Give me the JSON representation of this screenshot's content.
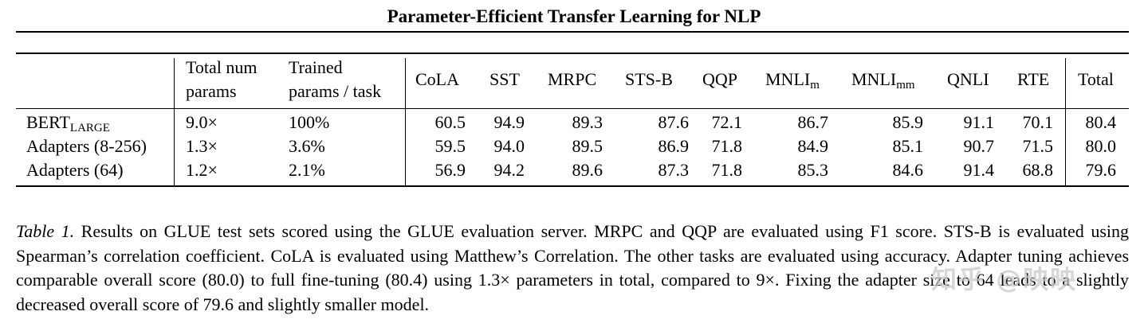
{
  "header": {
    "title": "Parameter-Efficient Transfer Learning for NLP"
  },
  "table": {
    "columns": {
      "total_num_params": [
        "Total num",
        "params"
      ],
      "trained_params": [
        "Trained",
        "params / task"
      ],
      "tasks": [
        "CoLA",
        "SST",
        "MRPC",
        "STS-B",
        "QQP",
        "MNLI",
        "MNLI",
        "QNLI",
        "RTE"
      ],
      "task_subscripts": {
        "mnli_m": "m",
        "mnli_mm": "mm"
      },
      "total": "Total"
    },
    "rows": [
      {
        "model": "BERT",
        "model_sub": "LARGE",
        "total_params": "9.0×",
        "trained": "100%",
        "scores": [
          "60.5",
          "94.9",
          "89.3",
          "87.6",
          "72.1",
          "86.7",
          "85.9",
          "91.1",
          "70.1"
        ],
        "total": "80.4"
      },
      {
        "model": "Adapters (8-256)",
        "model_sub": "",
        "total_params": "1.3×",
        "trained": "3.6%",
        "scores": [
          "59.5",
          "94.0",
          "89.5",
          "86.9",
          "71.8",
          "84.9",
          "85.1",
          "90.7",
          "71.5"
        ],
        "total": "80.0"
      },
      {
        "model": "Adapters (64)",
        "model_sub": "",
        "total_params": "1.2×",
        "trained": "2.1%",
        "scores": [
          "56.9",
          "94.2",
          "89.6",
          "87.3",
          "71.8",
          "85.3",
          "84.6",
          "91.4",
          "68.8"
        ],
        "total": "79.6"
      }
    ]
  },
  "caption": {
    "label": "Table 1.",
    "text": " Results on GLUE test sets scored using the GLUE evaluation server. MRPC and QQP are evaluated using F1 score. STS-B is evaluated using Spearman’s correlation coefficient. CoLA is evaluated using Matthew’s Correlation. The other tasks are evaluated using accuracy. Adapter tuning achieves comparable overall score (80.0) to full fine-tuning (80.4) using 1.3× parameters in total, compared to 9×. Fixing the adapter size to 64 leads to a slightly decreased overall score of 79.6 and slightly smaller model."
  },
  "watermark": "知乎 @映映"
}
